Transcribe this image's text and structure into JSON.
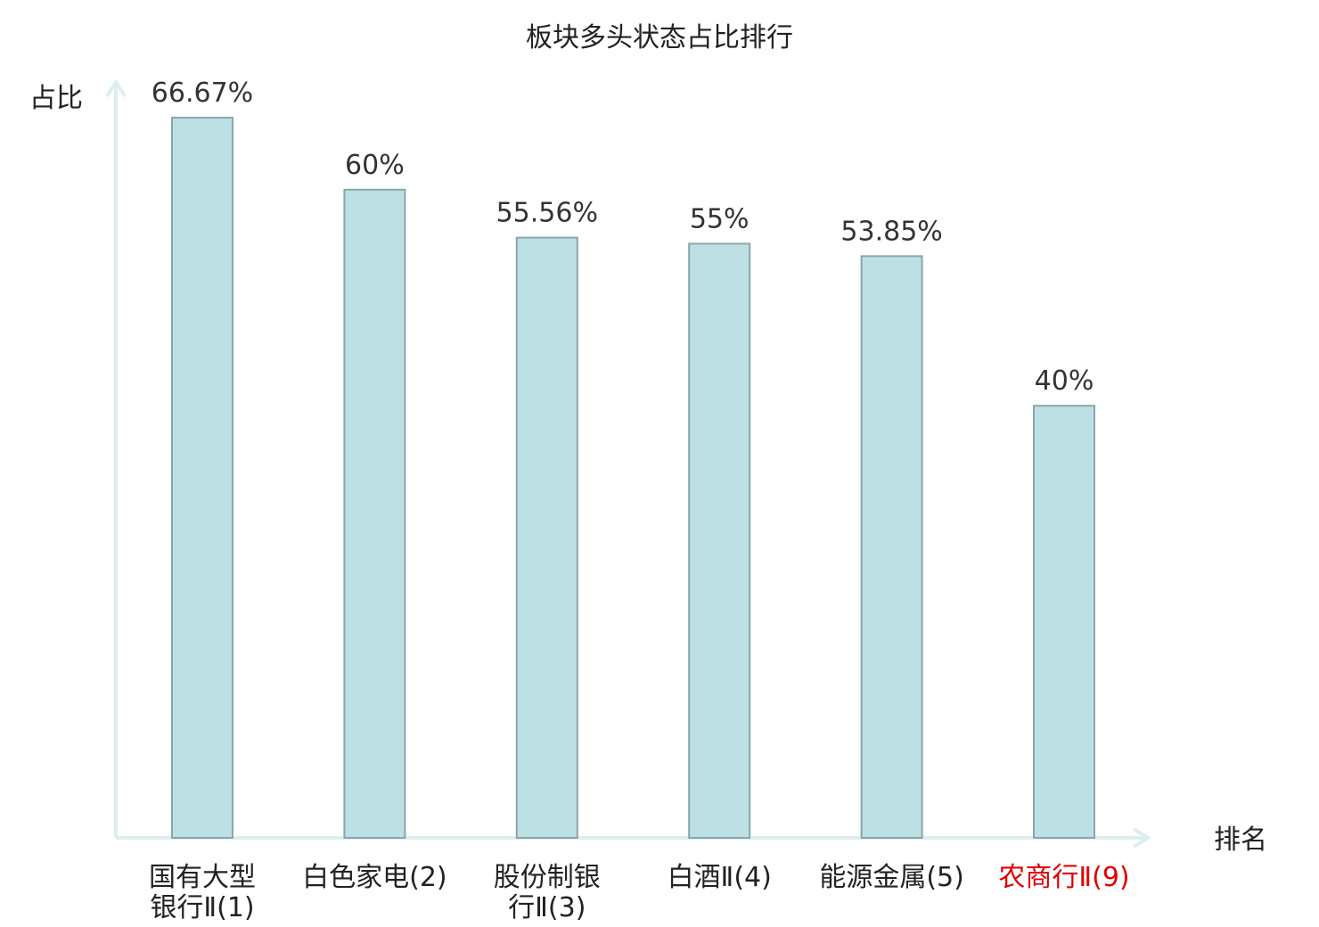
{
  "chart_data": {
    "type": "bar",
    "title": "板块多头状态占比排行",
    "ylabel": "占比",
    "xlabel": "排名",
    "categories": [
      {
        "lines": [
          "国有大型",
          "银行Ⅱ(1)"
        ],
        "name": "国有大型银行Ⅱ",
        "rank": "(1)"
      },
      {
        "lines": [
          "白色家电(2)"
        ],
        "name": "白色家电",
        "rank": "(2)"
      },
      {
        "lines": [
          "股份制银",
          "行Ⅱ(3)"
        ],
        "name": "股份制银行Ⅱ",
        "rank": "(3)"
      },
      {
        "lines": [
          "白酒Ⅱ(4)"
        ],
        "name": "白酒Ⅱ",
        "rank": "(4)"
      },
      {
        "lines": [
          "能源金属(5)"
        ],
        "name": "能源金属",
        "rank": "(5)"
      },
      {
        "lines": [
          "农商行Ⅱ(9)"
        ],
        "name": "农商行Ⅱ",
        "rank": "(9)",
        "highlight": true
      }
    ],
    "values": [
      66.67,
      60,
      55.56,
      55,
      53.85,
      40
    ],
    "value_labels": [
      "66.67%",
      "60%",
      "55.56%",
      "55%",
      "53.85%",
      "40%"
    ],
    "ylim": [
      0,
      70
    ],
    "grid": false,
    "colors": {
      "bar_fill": "#bce0e3",
      "bar_stroke": "#8aa6a9",
      "axis": "#dcefee",
      "highlight": "#e00000"
    }
  }
}
